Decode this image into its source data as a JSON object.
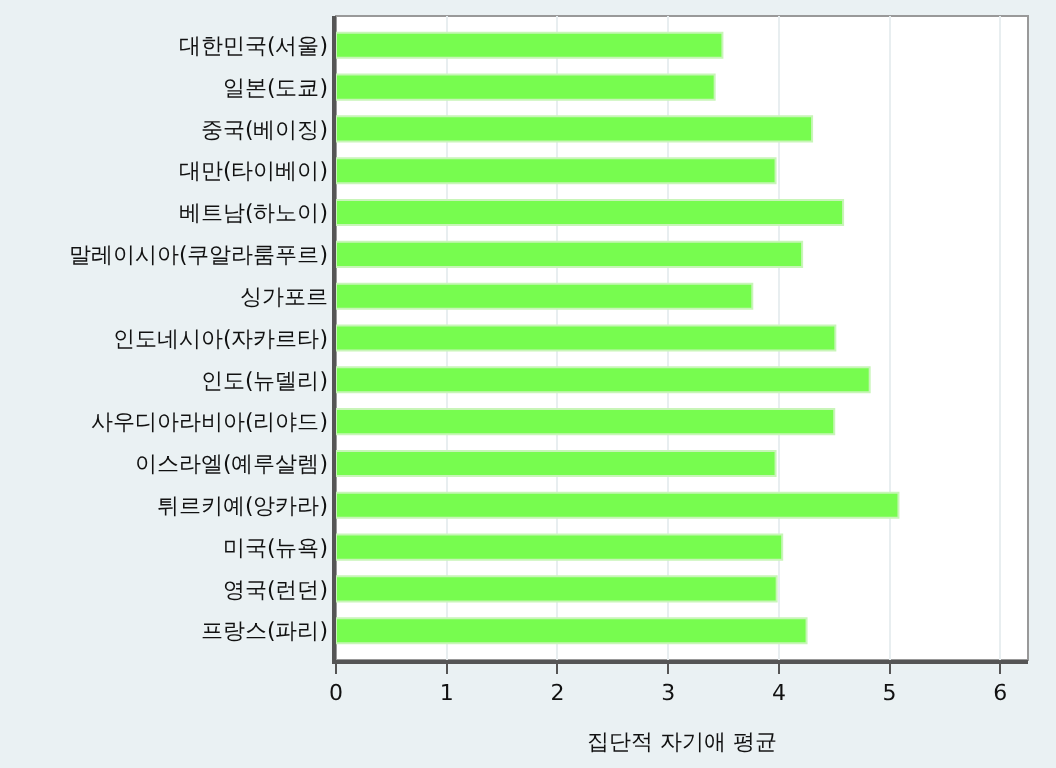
{
  "chart_data": {
    "type": "bar",
    "orientation": "horizontal",
    "xlabel": "집단적 자기애 평균",
    "categories": [
      "대한민국(서울)",
      "일본(도쿄)",
      "중국(베이징)",
      "대만(타이베이)",
      "베트남(하노이)",
      "말레이시아(쿠알라룸푸르)",
      "싱가포르",
      "인도네시아(자카르타)",
      "인도(뉴델리)",
      "사우디아라비아(리야드)",
      "이스라엘(예루살렘)",
      "튀르키예(앙카라)",
      "미국(뉴욕)",
      "영국(런던)",
      "프랑스(파리)"
    ],
    "values": [
      3.49,
      3.42,
      4.3,
      3.97,
      4.58,
      4.21,
      3.76,
      4.51,
      4.82,
      4.5,
      3.97,
      5.08,
      4.03,
      3.98,
      4.25
    ],
    "color": "#77fc4f",
    "xlim": [
      0,
      6.25
    ],
    "xticks": [
      0,
      1,
      2,
      3,
      4,
      5,
      6
    ],
    "grid": "x"
  }
}
